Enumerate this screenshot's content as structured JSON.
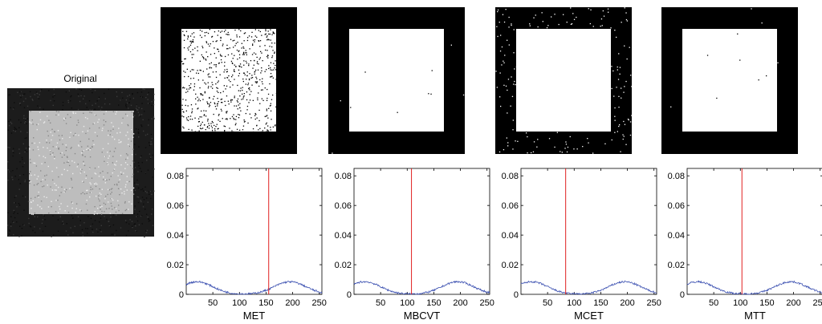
{
  "original_title": "Original",
  "methods": [
    {
      "name": "MET",
      "threshold": 155,
      "mask_noise": "inside-dark-dots"
    },
    {
      "name": "MBCVT",
      "threshold": 108,
      "mask_noise": "sparse"
    },
    {
      "name": "MCET",
      "threshold": 84,
      "mask_noise": "outside-light-dots"
    },
    {
      "name": "MTT",
      "threshold": 103,
      "mask_noise": "sparse"
    }
  ],
  "chart_data": {
    "type": "line",
    "xlim": [
      0,
      255
    ],
    "ylim": [
      0,
      0.085
    ],
    "xticks": [
      50,
      100,
      150,
      200,
      250
    ],
    "yticks": [
      0,
      0.02,
      0.04,
      0.06,
      0.08
    ],
    "ytick_labels": [
      "0",
      "0.02",
      "0.04",
      "0.06",
      "0.08"
    ],
    "histogram": {
      "description_of_shape": "bimodal",
      "peaks": [
        {
          "x": 20,
          "y": 0.0085
        },
        {
          "x": 195,
          "y": 0.0085
        }
      ],
      "valley": {
        "x": 105,
        "y": 0.0
      },
      "edge_value_left": 0.005,
      "edge_value_right": 0.004
    },
    "colors": {
      "histogram": "#3a4fb0",
      "threshold": "#e02020"
    }
  }
}
